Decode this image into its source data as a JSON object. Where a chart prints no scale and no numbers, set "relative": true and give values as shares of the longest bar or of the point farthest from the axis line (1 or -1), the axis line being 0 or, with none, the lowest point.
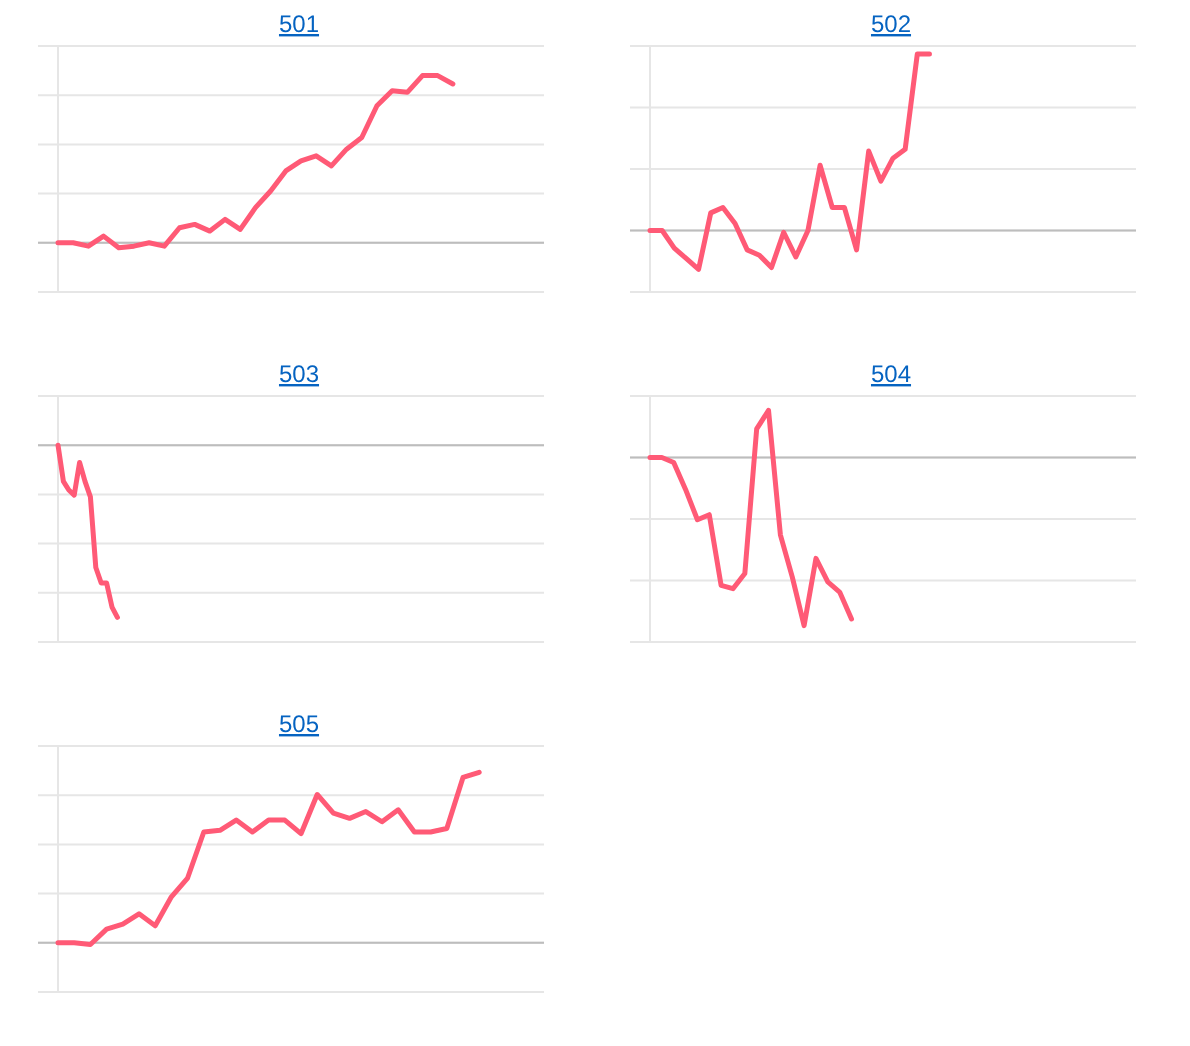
{
  "chart_data": [
    {
      "type": "line",
      "title": "501",
      "relative": true,
      "grid": true,
      "categories": [
        null,
        null,
        null,
        null,
        null,
        null,
        null,
        null,
        null,
        null,
        null,
        null,
        null,
        null,
        null,
        null,
        null,
        null,
        null,
        null,
        null,
        null,
        null,
        null,
        null,
        null,
        null,
        null,
        null,
        null,
        null,
        null,
        null
      ],
      "series": [
        {
          "color": "#ff5a76",
          "values": [
            0,
            0,
            -0.02,
            0.04,
            -0.03,
            -0.02,
            0,
            -0.02,
            0.09,
            0.11,
            0.07,
            0.14,
            0.08,
            0.21,
            0.31,
            0.43,
            0.49,
            0.52,
            0.46,
            0.56,
            0.63,
            0.82,
            0.91,
            0.9,
            1,
            1,
            0.95,
            null,
            null,
            null,
            null,
            null,
            null
          ]
        }
      ]
    },
    {
      "type": "line",
      "title": "502",
      "relative": true,
      "grid": true,
      "categories": [
        null,
        null,
        null,
        null,
        null,
        null,
        null,
        null,
        null,
        null,
        null,
        null,
        null,
        null,
        null,
        null,
        null,
        null,
        null,
        null,
        null,
        null,
        null,
        null,
        null,
        null,
        null,
        null,
        null,
        null,
        null,
        null,
        null,
        null,
        null,
        null,
        null,
        null,
        null,
        null,
        null
      ],
      "series": [
        {
          "color": "#ff5a76",
          "values": [
            0,
            0,
            -0.1,
            -0.16,
            -0.22,
            0.1,
            0.13,
            0.04,
            -0.11,
            -0.14,
            -0.21,
            -0.01,
            -0.15,
            0,
            0.37,
            0.13,
            0.13,
            -0.11,
            0.45,
            0.28,
            0.41,
            0.46,
            1,
            1,
            null,
            null,
            null,
            null,
            null,
            null,
            null,
            null,
            null,
            null,
            null,
            null,
            null,
            null,
            null,
            null,
            null
          ]
        }
      ]
    },
    {
      "type": "line",
      "title": "503",
      "relative": true,
      "grid": true,
      "categories": [
        null,
        null,
        null,
        null,
        null,
        null,
        null,
        null,
        null,
        null,
        null,
        null,
        null,
        null,
        null,
        null,
        null,
        null,
        null,
        null,
        null,
        null,
        null,
        null,
        null,
        null,
        null,
        null,
        null,
        null,
        null,
        null,
        null,
        null,
        null,
        null,
        null,
        null,
        null,
        null,
        null,
        null,
        null,
        null,
        null,
        null,
        null,
        null,
        null,
        null,
        null,
        null,
        null,
        null,
        null,
        null,
        null,
        null,
        null,
        null,
        null,
        null,
        null,
        null,
        null,
        null,
        null,
        null,
        null,
        null,
        null,
        null,
        null,
        null,
        null,
        null,
        null,
        null,
        null,
        null,
        null,
        null,
        null,
        null,
        null,
        null,
        null,
        null,
        null,
        null,
        null
      ],
      "series": [
        {
          "color": "#ff5a76",
          "values": [
            0,
            -0.21,
            -0.26,
            -0.29,
            -0.1,
            -0.21,
            -0.3,
            -0.71,
            -0.8,
            -0.8,
            -0.94,
            -1,
            null,
            null,
            null,
            null,
            null,
            null,
            null,
            null,
            null,
            null,
            null,
            null,
            null,
            null,
            null,
            null,
            null,
            null,
            null,
            null,
            null,
            null,
            null,
            null,
            null,
            null,
            null,
            null,
            null,
            null,
            null,
            null,
            null,
            null,
            null,
            null,
            null,
            null,
            null,
            null,
            null,
            null,
            null,
            null,
            null,
            null,
            null,
            null,
            null,
            null,
            null,
            null,
            null,
            null,
            null,
            null,
            null,
            null,
            null,
            null,
            null,
            null,
            null,
            null,
            null,
            null,
            null,
            null,
            null,
            null,
            null,
            null,
            null,
            null,
            null,
            null,
            null,
            null,
            null
          ]
        }
      ]
    },
    {
      "type": "line",
      "title": "504",
      "relative": true,
      "grid": true,
      "categories": [
        null,
        null,
        null,
        null,
        null,
        null,
        null,
        null,
        null,
        null,
        null,
        null,
        null,
        null,
        null,
        null,
        null,
        null,
        null,
        null,
        null,
        null,
        null,
        null,
        null,
        null,
        null,
        null,
        null,
        null,
        null,
        null,
        null,
        null,
        null,
        null,
        null,
        null,
        null,
        null,
        null,
        null
      ],
      "series": [
        {
          "color": "#ff5a76",
          "values": [
            0,
            0,
            -0.03,
            -0.19,
            -0.37,
            -0.34,
            -0.76,
            -0.78,
            -0.69,
            0.17,
            0.28,
            -0.46,
            -0.71,
            -1,
            -0.6,
            -0.74,
            -0.8,
            -0.96,
            null,
            null,
            null,
            null,
            null,
            null,
            null,
            null,
            null,
            null,
            null,
            null,
            null,
            null,
            null,
            null,
            null,
            null,
            null,
            null,
            null,
            null,
            null,
            null
          ]
        }
      ]
    },
    {
      "type": "line",
      "title": "505",
      "relative": true,
      "grid": true,
      "categories": [
        null,
        null,
        null,
        null,
        null,
        null,
        null,
        null,
        null,
        null,
        null,
        null,
        null,
        null,
        null,
        null,
        null,
        null,
        null,
        null,
        null,
        null,
        null,
        null,
        null,
        null,
        null,
        null,
        null,
        null,
        null
      ],
      "series": [
        {
          "color": "#ff5a76",
          "values": [
            0,
            0,
            -0.01,
            0.08,
            0.11,
            0.17,
            0.1,
            0.27,
            0.38,
            0.65,
            0.66,
            0.72,
            0.65,
            0.72,
            0.72,
            0.64,
            0.87,
            0.76,
            0.73,
            0.77,
            0.71,
            0.78,
            0.65,
            0.65,
            0.67,
            0.97,
            1,
            null,
            null,
            null,
            null
          ]
        }
      ]
    }
  ]
}
